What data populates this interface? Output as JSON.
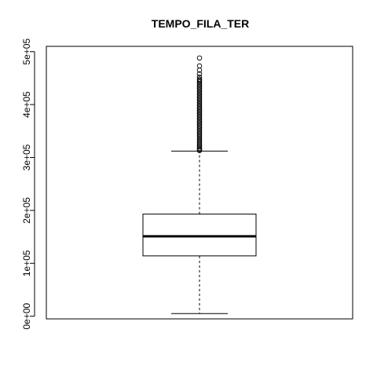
{
  "chart_data": {
    "type": "boxplot",
    "title": "TEMPO_FILA_TER",
    "xlabel": "",
    "ylabel": "",
    "ylim": [
      -5000,
      510000
    ],
    "yticks": [
      0,
      100000,
      200000,
      300000,
      400000,
      500000
    ],
    "ytick_labels": [
      "0e+00",
      "1e+05",
      "2e+05",
      "3e+05",
      "4e+05",
      "5e+05"
    ],
    "grid": false,
    "box": {
      "whisker_low": 5000,
      "q1": 114000,
      "median": 151000,
      "q3": 193000,
      "whisker_high": 312000
    },
    "outliers": [
      488000,
      473000,
      465000,
      458000,
      452000,
      448000,
      446000,
      443000,
      440000,
      437000,
      434000,
      431000,
      428000,
      425000,
      422000,
      419000,
      416000,
      413000,
      410000,
      407000,
      404000,
      401000,
      398000,
      395000,
      392000,
      389000,
      386000,
      383000,
      380000,
      377000,
      374000,
      371000,
      368000,
      365000,
      362000,
      359000,
      356000,
      353000,
      350000,
      347000,
      344000,
      341000,
      338000,
      335000,
      332000,
      329000,
      326000,
      323000,
      320000,
      317000,
      315000,
      313000
    ]
  }
}
